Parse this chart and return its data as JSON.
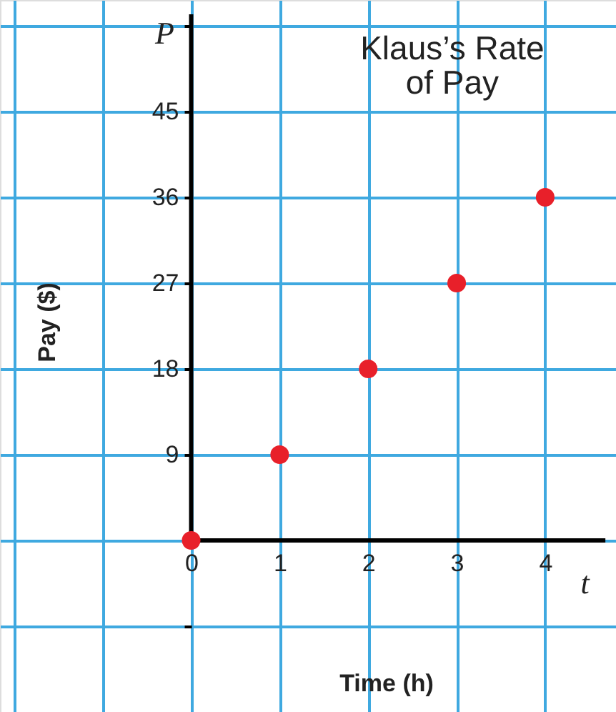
{
  "chart_data": {
    "type": "scatter",
    "title": [
      "Klaus’s Rate",
      "of Pay"
    ],
    "xlabel": "Time (h)",
    "ylabel": "Pay ($)",
    "annotations": [
      "P",
      "t"
    ],
    "x": [
      0,
      1,
      2,
      3,
      4
    ],
    "values": [
      0,
      9,
      18,
      27,
      36
    ],
    "color": "#e8202a",
    "marker": "circle",
    "xlim": [
      -2.16,
      4.8
    ],
    "ylim": [
      -18,
      56.7
    ],
    "xticks": [
      {
        "value": -2,
        "label": null
      },
      {
        "value": -1,
        "label": null
      },
      0,
      1,
      2,
      3,
      4
    ],
    "yticks": [
      {
        "value": -9,
        "label": null
      },
      {
        "value": 0,
        "label": null
      },
      9,
      18,
      27,
      36,
      45,
      {
        "value": 54,
        "label": null
      }
    ],
    "grid": true
  }
}
